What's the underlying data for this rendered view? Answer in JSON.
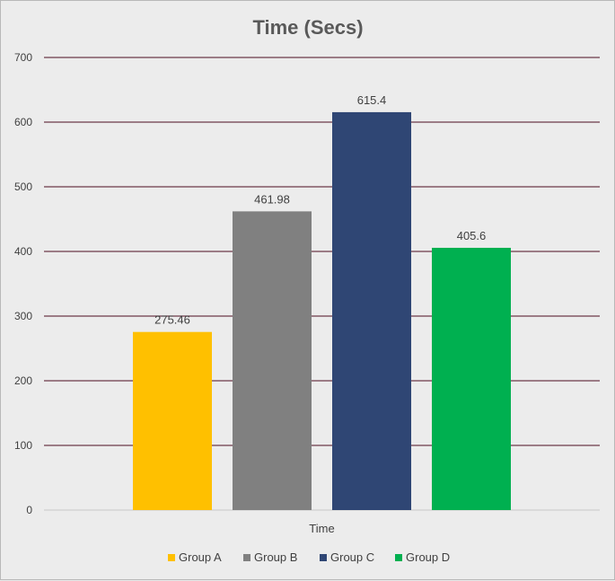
{
  "chart_data": {
    "type": "bar",
    "title": "Time (Secs)",
    "categories": [
      "Time"
    ],
    "series": [
      {
        "name": "Group A",
        "values": [
          275.46
        ],
        "label": "275.46",
        "color": "#ffc000"
      },
      {
        "name": "Group B",
        "values": [
          461.98
        ],
        "label": "461.98",
        "color": "#808080"
      },
      {
        "name": "Group C",
        "values": [
          615.4
        ],
        "label": "615.4",
        "color": "#2f4674"
      },
      {
        "name": "Group D",
        "values": [
          405.6
        ],
        "label": "405.6",
        "color": "#00b050"
      }
    ],
    "ylim": [
      0,
      700
    ],
    "yticks": [
      0,
      100,
      200,
      300,
      400,
      500,
      600,
      700
    ],
    "grid": true,
    "gridline_color": "#6b3a4a",
    "legend_position": "bottom"
  }
}
